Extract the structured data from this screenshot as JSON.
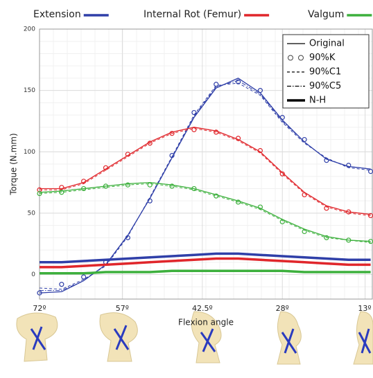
{
  "chart_data": {
    "type": "line",
    "ylabel": "Torque (N.mm)",
    "xlabel": "Flexion angle",
    "xlim": [
      72,
      11.7
    ],
    "ylim": [
      -20,
      200
    ],
    "xticks": [
      {
        "value": 72,
        "label": "72º"
      },
      {
        "value": 57,
        "label": "57º"
      },
      {
        "value": 42.5,
        "label": "42.5º"
      },
      {
        "value": 28,
        "label": "28º"
      },
      {
        "value": 13,
        "label": "13º"
      }
    ],
    "yticks": [
      0,
      50,
      100,
      150,
      200
    ],
    "grid": true,
    "groups": [
      {
        "name": "Extension",
        "color": "#2f3fa8"
      },
      {
        "name": "Internal Rot (Femur)",
        "color": "#e0262b"
      },
      {
        "name": "Valgum",
        "color": "#3db03d"
      }
    ],
    "styles": [
      {
        "name": "Original",
        "dash": "none",
        "marker": false,
        "width": 1.3
      },
      {
        "name": "90%K",
        "dash": "none",
        "marker": true,
        "width": 0
      },
      {
        "name": "90%C1",
        "dash": "4 3",
        "marker": false,
        "width": 1
      },
      {
        "name": "90%C5",
        "dash": "6 2 1.5 2",
        "marker": false,
        "width": 1
      },
      {
        "name": "N-H",
        "dash": "none",
        "marker": false,
        "width": 3.5
      }
    ],
    "x": [
      72,
      68,
      64,
      60,
      56,
      52,
      48,
      44,
      40,
      36,
      32,
      28,
      24,
      20,
      16,
      12
    ],
    "series": [
      {
        "group": 0,
        "style": 0,
        "values": [
          -15,
          -14,
          -5,
          8,
          32,
          62,
          95,
          128,
          152,
          160,
          148,
          126,
          108,
          94,
          88,
          86
        ]
      },
      {
        "group": 0,
        "style": 1,
        "values": [
          -15,
          -8,
          -2,
          10,
          30,
          60,
          97,
          132,
          155,
          157,
          150,
          128,
          110,
          93,
          89,
          84
        ]
      },
      {
        "group": 0,
        "style": 2,
        "values": [
          -11,
          -12,
          -4,
          7,
          31,
          63,
          96,
          130,
          154,
          156,
          146,
          124,
          107,
          95,
          87,
          85
        ]
      },
      {
        "group": 0,
        "style": 3,
        "values": [
          -13,
          -13,
          -5,
          8,
          32,
          62,
          95,
          129,
          153,
          158,
          147,
          125,
          108,
          94,
          88,
          86
        ]
      },
      {
        "group": 0,
        "style": 4,
        "values": [
          10,
          10,
          11,
          12,
          13,
          14,
          15,
          16,
          17,
          17,
          16,
          15,
          14,
          13,
          12,
          12
        ]
      },
      {
        "group": 1,
        "style": 0,
        "values": [
          70,
          70,
          75,
          86,
          97,
          108,
          116,
          120,
          117,
          110,
          100,
          83,
          67,
          56,
          51,
          49
        ]
      },
      {
        "group": 1,
        "style": 1,
        "values": [
          69,
          71,
          76,
          87,
          98,
          107,
          115,
          118,
          116,
          111,
          101,
          82,
          65,
          54,
          51,
          48
        ]
      },
      {
        "group": 1,
        "style": 2,
        "values": [
          69,
          69,
          74,
          85,
          96,
          107,
          115,
          119,
          116,
          109,
          99,
          82,
          66,
          55,
          50,
          48
        ]
      },
      {
        "group": 1,
        "style": 3,
        "values": [
          70,
          70,
          75,
          86,
          97,
          108,
          116,
          120,
          117,
          110,
          100,
          83,
          67,
          56,
          51,
          49
        ]
      },
      {
        "group": 1,
        "style": 4,
        "values": [
          6,
          6,
          7,
          8,
          9,
          10,
          11,
          12,
          13,
          13,
          12,
          11,
          10,
          9,
          8,
          8
        ]
      },
      {
        "group": 2,
        "style": 0,
        "values": [
          67,
          68,
          70,
          72,
          74,
          75,
          73,
          70,
          65,
          60,
          54,
          45,
          37,
          31,
          28,
          27
        ]
      },
      {
        "group": 2,
        "style": 1,
        "values": [
          66,
          67,
          70,
          72,
          73,
          73,
          72,
          70,
          64,
          59,
          55,
          43,
          35,
          30,
          28,
          27
        ]
      },
      {
        "group": 2,
        "style": 2,
        "values": [
          66,
          67,
          69,
          71,
          73,
          74,
          72,
          69,
          64,
          59,
          53,
          44,
          36,
          30,
          28,
          26
        ]
      },
      {
        "group": 2,
        "style": 3,
        "values": [
          67,
          68,
          70,
          72,
          74,
          75,
          73,
          70,
          65,
          60,
          54,
          45,
          37,
          31,
          28,
          27
        ]
      },
      {
        "group": 2,
        "style": 4,
        "values": [
          1,
          1,
          1,
          2,
          2,
          2,
          3,
          3,
          3,
          3,
          3,
          3,
          2,
          2,
          2,
          2
        ]
      }
    ]
  }
}
